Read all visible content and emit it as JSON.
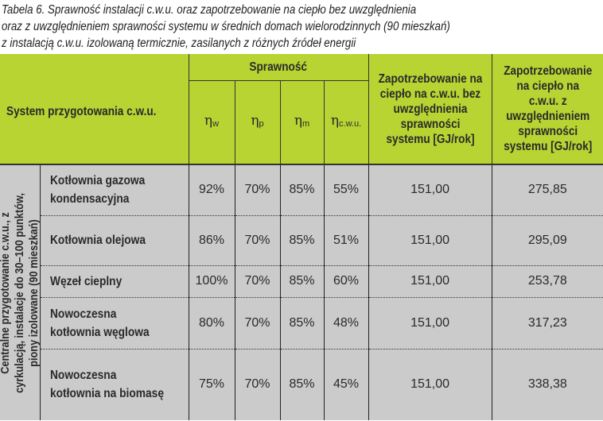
{
  "caption": {
    "line1": "Tabela 6. Sprawność instalacji c.w.u. oraz zapotrzebowanie na ciepło bez uwzględnienia",
    "line2": "oraz z uwzględnieniem sprawności systemu w średnich domach wielorodzinnych (90 mieszkań)",
    "line3": "z instalacją c.w.u. izolowaną termicznie, zasilanych z różnych źródeł energii"
  },
  "header": {
    "system": "System przygotowania c.w.u.",
    "efficiency": "Sprawność",
    "eta_symbol": "η",
    "eta_subs": [
      "w",
      "p",
      "m",
      "c.w.u."
    ],
    "demand_without": "Zapotrzebowanie na ciepło na c.w.u. bez uwzględnienia sprawności systemu [GJ/rok]",
    "demand_with": "Zapotrzebowanie na ciepło na c.w.u. z uwzględnieniem sprawności systemu [GJ/rok]"
  },
  "group_label": "Centralne przygotowanie c.w.u., z cyrkulacją, instalacje do 30–100 punktów, piony izolowane (90 mieszkań)",
  "colors": {
    "header_bg": "#b8d432",
    "body_bg": "#cbcbcb"
  },
  "rows": [
    {
      "name": "Kotłownia gazowa kondensacyjna",
      "eta_w": "92%",
      "eta_p": "70%",
      "eta_m": "85%",
      "eta_cwu": "55%",
      "without": "151,00",
      "with": "275,85"
    },
    {
      "name": "Kotłownia olejowa",
      "eta_w": "86%",
      "eta_p": "70%",
      "eta_m": "85%",
      "eta_cwu": "51%",
      "without": "151,00",
      "with": "295,09"
    },
    {
      "name": "Węzeł cieplny",
      "eta_w": "100%",
      "eta_p": "70%",
      "eta_m": "85%",
      "eta_cwu": "60%",
      "without": "151,00",
      "with": "253,78"
    },
    {
      "name": "Nowoczesna kotłownia węglowa",
      "eta_w": "80%",
      "eta_p": "70%",
      "eta_m": "85%",
      "eta_cwu": "48%",
      "without": "151,00",
      "with": "317,23"
    },
    {
      "name": "Nowoczesna kotłownia na biomasę",
      "eta_w": "75%",
      "eta_p": "70%",
      "eta_m": "85%",
      "eta_cwu": "45%",
      "without": "151,00",
      "with": "338,38"
    }
  ]
}
